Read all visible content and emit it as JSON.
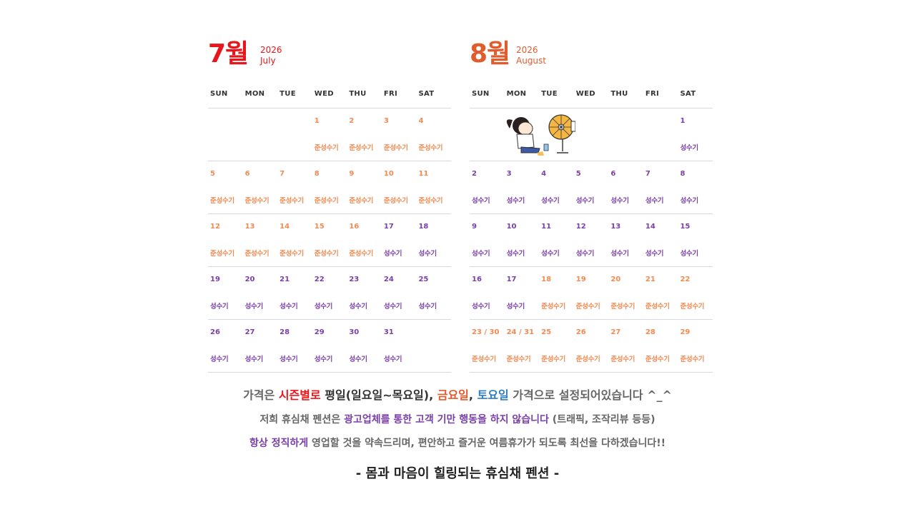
{
  "colors": {
    "july_accent": "#e8161a",
    "august_accent": "#e25b2d",
    "peak": "#f28a52",
    "standard": "#7b3fa8",
    "season_red": "#e8161a",
    "friday_orange": "#e25b2d",
    "saturday_blue": "#2d7fc1"
  },
  "legend": {
    "peak_label": "준성수기",
    "standard_label": "성수기"
  },
  "weekdays": [
    "SUN",
    "MON",
    "TUE",
    "WED",
    "THU",
    "FRI",
    "SAT"
  ],
  "july": {
    "label": "7월",
    "year": "2026",
    "name": "July",
    "weeks": [
      [
        null,
        null,
        null,
        {
          "d": "1",
          "s": "준성수기",
          "t": "peak"
        },
        {
          "d": "2",
          "s": "준성수기",
          "t": "peak"
        },
        {
          "d": "3",
          "s": "준성수기",
          "t": "peak"
        },
        {
          "d": "4",
          "s": "준성수기",
          "t": "peak"
        }
      ],
      [
        {
          "d": "5",
          "s": "준성수기",
          "t": "peak"
        },
        {
          "d": "6",
          "s": "준성수기",
          "t": "peak"
        },
        {
          "d": "7",
          "s": "준성수기",
          "t": "peak"
        },
        {
          "d": "8",
          "s": "준성수기",
          "t": "peak"
        },
        {
          "d": "9",
          "s": "준성수기",
          "t": "peak"
        },
        {
          "d": "10",
          "s": "준성수기",
          "t": "peak"
        },
        {
          "d": "11",
          "s": "준성수기",
          "t": "peak"
        }
      ],
      [
        {
          "d": "12",
          "s": "준성수기",
          "t": "peak"
        },
        {
          "d": "13",
          "s": "준성수기",
          "t": "peak"
        },
        {
          "d": "14",
          "s": "준성수기",
          "t": "peak"
        },
        {
          "d": "15",
          "s": "준성수기",
          "t": "peak"
        },
        {
          "d": "16",
          "s": "준성수기",
          "t": "peak"
        },
        {
          "d": "17",
          "s": "성수기",
          "t": "std"
        },
        {
          "d": "18",
          "s": "성수기",
          "t": "std"
        }
      ],
      [
        {
          "d": "19",
          "s": "성수기",
          "t": "std"
        },
        {
          "d": "20",
          "s": "성수기",
          "t": "std"
        },
        {
          "d": "21",
          "s": "성수기",
          "t": "std"
        },
        {
          "d": "22",
          "s": "성수기",
          "t": "std"
        },
        {
          "d": "23",
          "s": "성수기",
          "t": "std"
        },
        {
          "d": "24",
          "s": "성수기",
          "t": "std"
        },
        {
          "d": "25",
          "s": "성수기",
          "t": "std"
        }
      ],
      [
        {
          "d": "26",
          "s": "성수기",
          "t": "std"
        },
        {
          "d": "27",
          "s": "성수기",
          "t": "std"
        },
        {
          "d": "28",
          "s": "성수기",
          "t": "std"
        },
        {
          "d": "29",
          "s": "성수기",
          "t": "std"
        },
        {
          "d": "30",
          "s": "성수기",
          "t": "std"
        },
        {
          "d": "31",
          "s": "성수기",
          "t": "std"
        },
        null
      ]
    ]
  },
  "august": {
    "label": "8월",
    "year": "2026",
    "name": "August",
    "weeks": [
      [
        null,
        null,
        null,
        null,
        null,
        null,
        {
          "d": "1",
          "s": "성수기",
          "t": "std"
        }
      ],
      [
        {
          "d": "2",
          "s": "성수기",
          "t": "std"
        },
        {
          "d": "3",
          "s": "성수기",
          "t": "std"
        },
        {
          "d": "4",
          "s": "성수기",
          "t": "std"
        },
        {
          "d": "5",
          "s": "성수기",
          "t": "std"
        },
        {
          "d": "6",
          "s": "성수기",
          "t": "std"
        },
        {
          "d": "7",
          "s": "성수기",
          "t": "std"
        },
        {
          "d": "8",
          "s": "성수기",
          "t": "std"
        }
      ],
      [
        {
          "d": "9",
          "s": "성수기",
          "t": "std"
        },
        {
          "d": "10",
          "s": "성수기",
          "t": "std"
        },
        {
          "d": "11",
          "s": "성수기",
          "t": "std"
        },
        {
          "d": "12",
          "s": "성수기",
          "t": "std"
        },
        {
          "d": "13",
          "s": "성수기",
          "t": "std"
        },
        {
          "d": "14",
          "s": "성수기",
          "t": "std"
        },
        {
          "d": "15",
          "s": "성수기",
          "t": "std"
        }
      ],
      [
        {
          "d": "16",
          "s": "성수기",
          "t": "std"
        },
        {
          "d": "17",
          "s": "성수기",
          "t": "std"
        },
        {
          "d": "18",
          "s": "준성수기",
          "t": "peak"
        },
        {
          "d": "19",
          "s": "준성수기",
          "t": "peak"
        },
        {
          "d": "20",
          "s": "준성수기",
          "t": "peak"
        },
        {
          "d": "21",
          "s": "준성수기",
          "t": "peak"
        },
        {
          "d": "22",
          "s": "준성수기",
          "t": "peak"
        }
      ],
      [
        {
          "d": "23 / 30",
          "s": "준성수기",
          "t": "peak"
        },
        {
          "d": "24 / 31",
          "s": "준성수기",
          "t": "peak"
        },
        {
          "d": "25",
          "s": "준성수기",
          "t": "peak"
        },
        {
          "d": "26",
          "s": "준성수기",
          "t": "peak"
        },
        {
          "d": "27",
          "s": "준성수기",
          "t": "peak"
        },
        {
          "d": "28",
          "s": "준성수기",
          "t": "peak"
        },
        {
          "d": "29",
          "s": "준성수기",
          "t": "peak"
        }
      ]
    ]
  },
  "notice": {
    "line1": [
      {
        "text": "가격은 ",
        "style": "plain"
      },
      {
        "text": "시즌별로",
        "style": "red"
      },
      {
        "text": " ",
        "style": "plain"
      },
      {
        "text": "평일",
        "style": "dark"
      },
      {
        "text": "(일요일~목요일), ",
        "style": "dark"
      },
      {
        "text": "금요일",
        "style": "orange"
      },
      {
        "text": ", ",
        "style": "dark"
      },
      {
        "text": "토요일",
        "style": "blue"
      },
      {
        "text": " 가격으로 설정되어있습니다 ^_^",
        "style": "plain"
      }
    ],
    "line2": [
      {
        "text": "저희 휴심채 펜션은 ",
        "style": "plain"
      },
      {
        "text": "광고업체를 통한 고객 기만 행동을 하지 않습니다",
        "style": "purple"
      },
      {
        "text": " (트래픽, 조작리뷰 등등)",
        "style": "plain"
      }
    ],
    "line3": [
      {
        "text": "항상 정직하게",
        "style": "purple"
      },
      {
        "text": " 영업할 것을 약속드리며, 편안하고 즐거운 여름휴가가 되도록 최선을 다하겠습니다!!",
        "style": "plain"
      }
    ],
    "line4": "- 몸과 마음이 힐링되는 휴심채 펜션 -"
  }
}
